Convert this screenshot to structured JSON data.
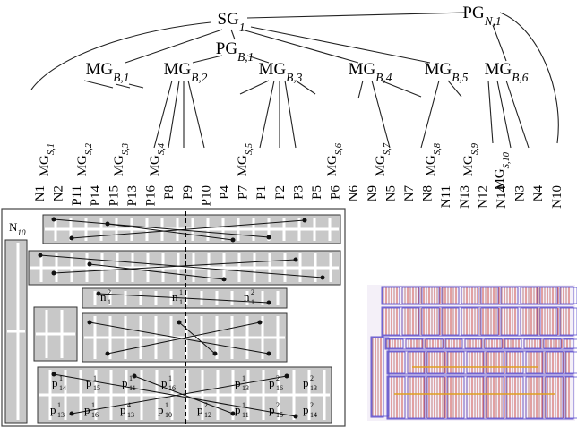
{
  "tree": {
    "nodes": [
      {
        "base": "SG",
        "sub": "1"
      },
      {
        "base": "PG",
        "sub": "N,1"
      },
      {
        "base": "PG",
        "sub": "B,1"
      },
      {
        "base": "MG",
        "sub": "B,1"
      },
      {
        "base": "MG",
        "sub": "B,2"
      },
      {
        "base": "MG",
        "sub": "B,3"
      },
      {
        "base": "MG",
        "sub": "B,4"
      },
      {
        "base": "MG",
        "sub": "B,5"
      },
      {
        "base": "MG",
        "sub": "B,6"
      }
    ],
    "mgs": [
      {
        "base": "MG",
        "sub": "S,1"
      },
      {
        "base": "MG",
        "sub": "S,2"
      },
      {
        "base": "MG",
        "sub": "S,3"
      },
      {
        "base": "MG",
        "sub": "S,4"
      },
      {
        "base": "MG",
        "sub": "S,5"
      },
      {
        "base": "MG",
        "sub": "S,6"
      },
      {
        "base": "MG",
        "sub": "S,7"
      },
      {
        "base": "MG",
        "sub": "S,8"
      },
      {
        "base": "MG",
        "sub": "S,9"
      },
      {
        "base": "MG",
        "sub": "S,10"
      }
    ],
    "leaves": [
      "N1",
      "N2",
      "P11",
      "P14",
      "P15",
      "P13",
      "P16",
      "P8",
      "P9",
      "P10",
      "P4",
      "P7",
      "P1",
      "P2",
      "P3",
      "P5",
      "P6",
      "N6",
      "N9",
      "N5",
      "N7",
      "N8",
      "N11",
      "N13",
      "N12",
      "N14",
      "N3",
      "N4",
      "N10"
    ]
  },
  "placement": {
    "labels": [
      {
        "base": "N",
        "sub": "10"
      },
      {
        "base": "n",
        "sub": "1",
        "sup": "2"
      },
      {
        "base": "n",
        "sub": "1",
        "sup": "1"
      },
      {
        "base": "n",
        "sub": "1",
        "sup": "2"
      },
      {
        "base": "p",
        "sub": "14",
        "sup": "1"
      },
      {
        "base": "p",
        "sub": "15",
        "sup": "1"
      },
      {
        "base": "p",
        "sub": "11",
        "sup": "1"
      },
      {
        "base": "p",
        "sub": "16",
        "sup": "1"
      },
      {
        "base": "p",
        "sub": "13",
        "sup": "1"
      },
      {
        "base": "p",
        "sub": "16",
        "sup": "2"
      },
      {
        "base": "p",
        "sub": "13",
        "sup": "2"
      },
      {
        "base": "p",
        "sub": "13",
        "sup": "1"
      },
      {
        "base": "p",
        "sub": "16",
        "sup": "1"
      },
      {
        "base": "p",
        "sub": "13",
        "sup": "4"
      },
      {
        "base": "p",
        "sub": "10",
        "sup": "1"
      },
      {
        "base": "p",
        "sub": "12",
        "sup": "2"
      },
      {
        "base": "p",
        "sub": "11",
        "sup": "1"
      },
      {
        "base": "p",
        "sub": "15",
        "sup": "2"
      },
      {
        "base": "p",
        "sub": "14",
        "sup": "2"
      }
    ]
  }
}
